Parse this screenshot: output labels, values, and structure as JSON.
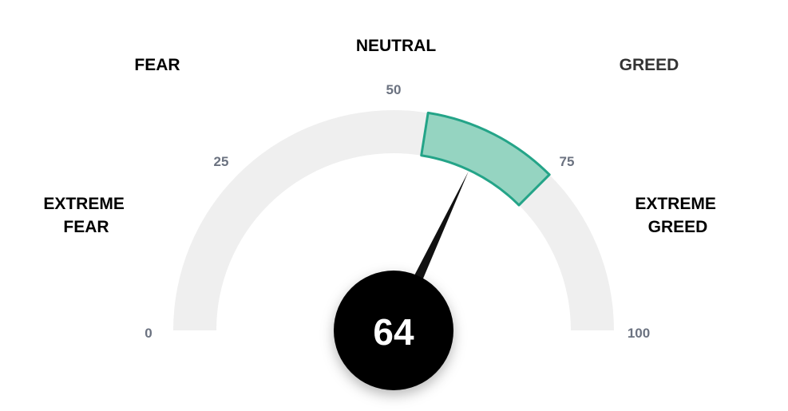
{
  "chart_data": {
    "type": "gauge",
    "value": 64,
    "range": [
      0,
      100
    ],
    "highlight_range": [
      55,
      75
    ],
    "ticks": [
      "0",
      "25",
      "50",
      "75",
      "100"
    ],
    "zones": [
      {
        "id": "extreme-fear",
        "lines": [
          "EXTREME",
          "FEAR"
        ]
      },
      {
        "id": "fear",
        "lines": [
          "FEAR"
        ]
      },
      {
        "id": "neutral",
        "lines": [
          "NEUTRAL"
        ]
      },
      {
        "id": "greed",
        "lines": [
          "GREED"
        ]
      },
      {
        "id": "extreme-greed",
        "lines": [
          "EXTREME",
          "GREED"
        ]
      }
    ],
    "value_label": "64"
  },
  "colors": {
    "track": "#efefef",
    "highlight_fill": "#95d4c1",
    "highlight_stroke": "#24a488",
    "needle": "#111111",
    "hub": "#000000",
    "value_text": "#ffffff"
  }
}
